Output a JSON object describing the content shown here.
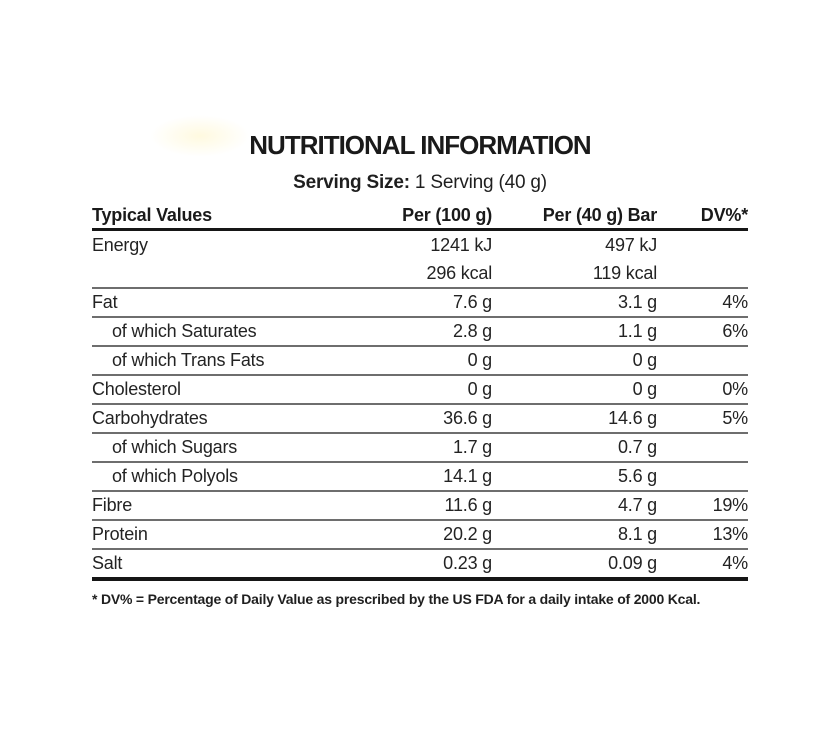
{
  "page": {
    "title": "NUTRITIONAL INFORMATION",
    "serving_label": "Serving Size:",
    "serving_value": " 1 Serving (40 g)",
    "footnote": "* DV% = Percentage of Daily Value as prescribed by the US FDA for a daily intake of 2000 Kcal."
  },
  "table": {
    "headers": {
      "typical_values": "Typical Values",
      "per_100": "Per (100 g)",
      "per_40": "Per (40 g) Bar",
      "dv": "DV%*"
    },
    "rows": [
      {
        "name": "Energy",
        "per100": "1241 kJ",
        "per40": "497 kJ",
        "dv": "",
        "no_divider": true
      },
      {
        "name": "",
        "per100": "296 kcal",
        "per40": "119 kcal",
        "dv": ""
      },
      {
        "name": "Fat",
        "per100": "7.6 g",
        "per40": "3.1 g",
        "dv": "4%"
      },
      {
        "name": "of which Saturates",
        "per100": "2.8 g",
        "per40": "1.1 g",
        "dv": "6%",
        "indent": true
      },
      {
        "name": "of which Trans Fats",
        "per100": "0 g",
        "per40": "0 g",
        "dv": "",
        "indent": true
      },
      {
        "name": "Cholesterol",
        "per100": "0 g",
        "per40": "0 g",
        "dv": "0%"
      },
      {
        "name": "Carbohydrates",
        "per100": "36.6 g",
        "per40": "14.6 g",
        "dv": "5%"
      },
      {
        "name": "of which Sugars",
        "per100": "1.7 g",
        "per40": "0.7 g",
        "dv": "",
        "indent": true
      },
      {
        "name": "of which Polyols",
        "per100": "14.1 g",
        "per40": "5.6 g",
        "dv": "",
        "indent": true
      },
      {
        "name": "Fibre",
        "per100": "11.6 g",
        "per40": "4.7 g",
        "dv": "19%"
      },
      {
        "name": "Protein",
        "per100": "20.2 g",
        "per40": "8.1 g",
        "dv": "13%"
      },
      {
        "name": "Salt",
        "per100": "0.23 g",
        "per40": "0.09 g",
        "dv": "4%",
        "last": true
      }
    ]
  },
  "colors": {
    "background": "#ffffff",
    "text": "#212121",
    "divider": "#6e6e6e",
    "strong_line": "#161616"
  }
}
